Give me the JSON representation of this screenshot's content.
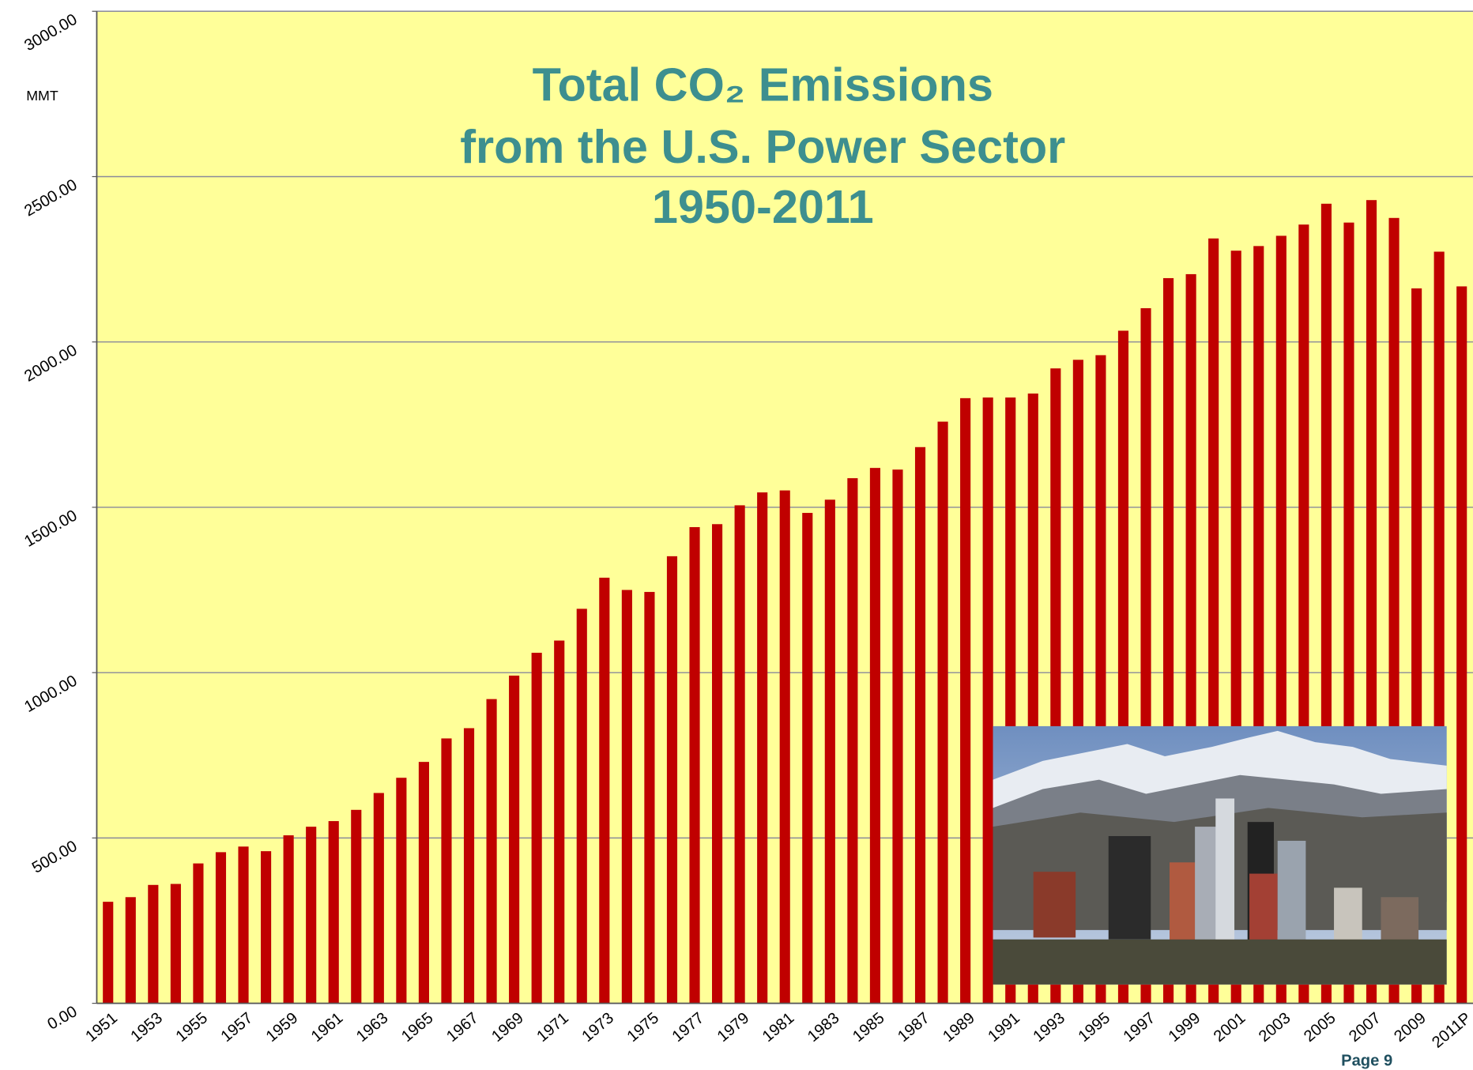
{
  "chart_data": {
    "type": "bar",
    "title": [
      "Total CO₂ Emissions",
      "from the U.S. Power Sector",
      "1950-2011"
    ],
    "y_label": "MMT",
    "footer": "Page 9",
    "color": "#c00000",
    "grid": true,
    "categories": [
      "1951",
      null,
      "1953",
      null,
      "1955",
      null,
      "1957",
      null,
      "1959",
      null,
      "1961",
      null,
      "1963",
      null,
      "1965",
      null,
      "1967",
      null,
      "1969",
      null,
      "1971",
      null,
      "1973",
      null,
      "1975",
      null,
      "1977",
      null,
      "1979",
      null,
      "1981",
      null,
      "1983",
      null,
      "1985",
      null,
      "1987",
      null,
      "1989",
      null,
      "1991",
      null,
      "1993",
      null,
      "1995",
      null,
      "1997",
      null,
      "1999",
      null,
      "2001",
      null,
      "2003",
      null,
      "2005",
      null,
      "2007",
      null,
      "2009",
      null,
      "2011P"
    ],
    "values": [
      307,
      321,
      358,
      361,
      423,
      457,
      474,
      460,
      508,
      534,
      551,
      585,
      636,
      682,
      730,
      801,
      832,
      920,
      991,
      1060,
      1097,
      1193,
      1287,
      1250,
      1244,
      1352,
      1440,
      1449,
      1506,
      1545,
      1551,
      1483,
      1523,
      1588,
      1619,
      1614,
      1682,
      1759,
      1830,
      1832,
      1832,
      1844,
      1920,
      1946,
      1960,
      2034,
      2102,
      2193,
      2205,
      2313,
      2276,
      2290,
      2321,
      2355,
      2418,
      2361,
      2429,
      2375,
      2162,
      2273,
      2168
    ],
    "ylim": [
      0,
      3000
    ],
    "yticks": [
      {
        "value": 0,
        "label": "0.00"
      },
      {
        "value": 500,
        "label": "500.00"
      },
      {
        "value": 1000,
        "label": "1000.00"
      },
      {
        "value": 1500,
        "label": "1500.00"
      },
      {
        "value": 2000,
        "label": "2000.00"
      },
      {
        "value": 2500,
        "label": "2500.00"
      },
      {
        "value": 3000,
        "label": "3000.00"
      }
    ]
  }
}
